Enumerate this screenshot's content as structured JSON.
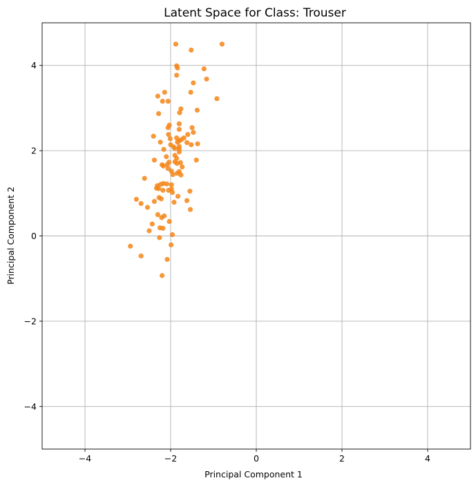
{
  "chart_data": {
    "type": "scatter",
    "title": "Latent Space for Class: Trouser",
    "xlabel": "Principal Component 1",
    "ylabel": "Principal Component 2",
    "xlim": [
      -5,
      5
    ],
    "ylim": [
      -5,
      5
    ],
    "xticks": [
      -4,
      -2,
      0,
      2,
      4
    ],
    "yticks": [
      -4,
      -2,
      0,
      2,
      4
    ],
    "xtick_labels": [
      "−4",
      "−2",
      "0",
      "2",
      "4"
    ],
    "ytick_labels": [
      "−4",
      "−2",
      "0",
      "2",
      "4"
    ],
    "grid": true,
    "point_color": "#f58518",
    "series": [
      {
        "points": [
          [
            -1.88,
            4.5
          ],
          [
            -1.52,
            4.36
          ],
          [
            -0.8,
            4.5
          ],
          [
            -1.86,
            3.99
          ],
          [
            -1.84,
            3.94
          ],
          [
            -1.22,
            3.92
          ],
          [
            -1.86,
            3.77
          ],
          [
            -1.16,
            3.68
          ],
          [
            -1.47,
            3.59
          ],
          [
            -1.53,
            3.37
          ],
          [
            -2.14,
            3.37
          ],
          [
            -2.3,
            3.28
          ],
          [
            -0.92,
            3.22
          ],
          [
            -2.19,
            3.16
          ],
          [
            -2.06,
            3.16
          ],
          [
            -1.76,
            2.98
          ],
          [
            -1.38,
            2.95
          ],
          [
            -1.79,
            2.89
          ],
          [
            -2.28,
            2.87
          ],
          [
            -1.8,
            2.63
          ],
          [
            -2.03,
            2.6
          ],
          [
            -2.06,
            2.54
          ],
          [
            -1.5,
            2.54
          ],
          [
            -1.8,
            2.5
          ],
          [
            -1.47,
            2.43
          ],
          [
            -1.6,
            2.38
          ],
          [
            -2.05,
            2.38
          ],
          [
            -2.4,
            2.34
          ],
          [
            -1.69,
            2.3
          ],
          [
            -1.86,
            2.3
          ],
          [
            -2.01,
            2.28
          ],
          [
            -1.75,
            2.26
          ],
          [
            -1.8,
            2.23
          ],
          [
            -1.84,
            2.2
          ],
          [
            -1.62,
            2.19
          ],
          [
            -2.24,
            2.2
          ],
          [
            -1.37,
            2.16
          ],
          [
            -2.0,
            2.14
          ],
          [
            -1.52,
            2.14
          ],
          [
            -1.8,
            2.1
          ],
          [
            -1.93,
            2.09
          ],
          [
            -1.9,
            2.05
          ],
          [
            -2.16,
            2.03
          ],
          [
            -1.8,
            2.04
          ],
          [
            -1.8,
            1.97
          ],
          [
            -1.9,
            1.89
          ],
          [
            -2.1,
            1.86
          ],
          [
            -1.86,
            1.82
          ],
          [
            -1.4,
            1.78
          ],
          [
            -2.38,
            1.78
          ],
          [
            -1.9,
            1.74
          ],
          [
            -1.77,
            1.72
          ],
          [
            -2.04,
            1.73
          ],
          [
            -1.85,
            1.7
          ],
          [
            -2.08,
            1.67
          ],
          [
            -2.2,
            1.67
          ],
          [
            -1.73,
            1.62
          ],
          [
            -2.17,
            1.64
          ],
          [
            -2.06,
            1.58
          ],
          [
            -1.98,
            1.52
          ],
          [
            -1.8,
            1.51
          ],
          [
            -1.85,
            1.47
          ],
          [
            -1.95,
            1.44
          ],
          [
            -1.76,
            1.43
          ],
          [
            -2.61,
            1.35
          ],
          [
            -2.17,
            1.23
          ],
          [
            -2.23,
            1.21
          ],
          [
            -2.09,
            1.22
          ],
          [
            -1.98,
            1.2
          ],
          [
            -2.31,
            1.18
          ],
          [
            -2.33,
            1.12
          ],
          [
            -2.28,
            1.11
          ],
          [
            -1.98,
            1.1
          ],
          [
            -2.18,
            1.07
          ],
          [
            -2.05,
            1.07
          ],
          [
            -1.55,
            1.05
          ],
          [
            -1.96,
            1.02
          ],
          [
            -1.83,
            0.93
          ],
          [
            -2.27,
            0.9
          ],
          [
            -2.22,
            0.87
          ],
          [
            -2.8,
            0.86
          ],
          [
            -1.62,
            0.83
          ],
          [
            -2.38,
            0.81
          ],
          [
            -1.92,
            0.79
          ],
          [
            -2.69,
            0.76
          ],
          [
            -2.54,
            0.67
          ],
          [
            -1.54,
            0.62
          ],
          [
            -2.3,
            0.5
          ],
          [
            -2.15,
            0.47
          ],
          [
            -2.21,
            0.43
          ],
          [
            -2.03,
            0.34
          ],
          [
            -2.43,
            0.28
          ],
          [
            -2.25,
            0.19
          ],
          [
            -2.18,
            0.18
          ],
          [
            -2.5,
            0.12
          ],
          [
            -1.96,
            0.03
          ],
          [
            -2.26,
            -0.04
          ],
          [
            -2.94,
            -0.24
          ],
          [
            -1.99,
            -0.21
          ],
          [
            -2.69,
            -0.47
          ],
          [
            -2.08,
            -0.55
          ],
          [
            -2.2,
            -0.93
          ]
        ]
      }
    ]
  }
}
